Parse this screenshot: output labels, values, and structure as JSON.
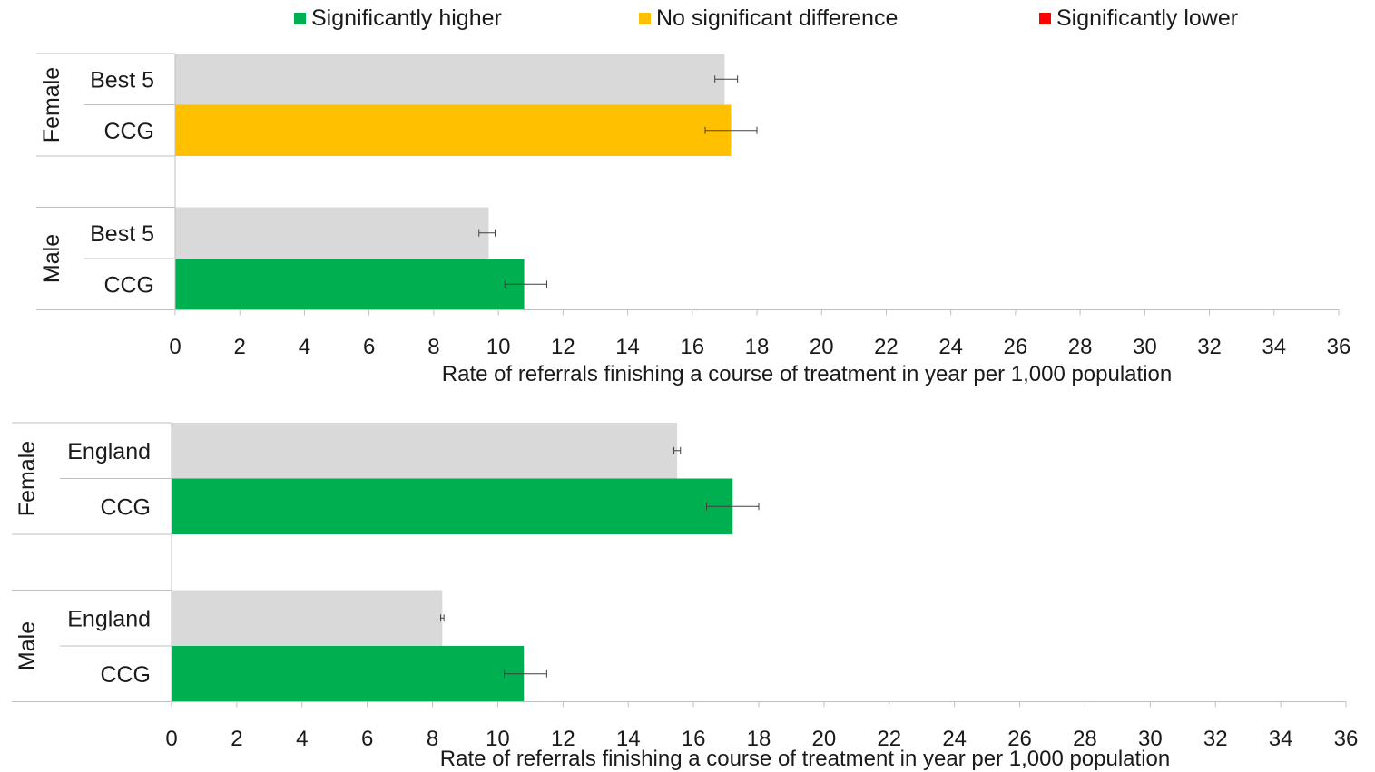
{
  "legend": {
    "items": [
      {
        "label": "Significantly higher",
        "color": "#00b050"
      },
      {
        "label": "No significant difference",
        "color": "#ffc000"
      },
      {
        "label": "Significantly lower",
        "color": "#ff0000"
      }
    ]
  },
  "colors": {
    "comparator": "#d9d9d9",
    "higher": "#00b050",
    "no_difference": "#ffc000",
    "lower": "#ff0000",
    "axis": "#bfbfbf",
    "error_bar": "#404040"
  },
  "chart_data": [
    {
      "type": "bar",
      "orientation": "horizontal",
      "xlabel": "Rate of referrals finishing a course of treatment in year per 1,000 population",
      "xlim": [
        0,
        36
      ],
      "xticks": [
        0,
        2,
        4,
        6,
        8,
        10,
        12,
        14,
        16,
        18,
        20,
        22,
        24,
        26,
        28,
        30,
        32,
        34,
        36
      ],
      "groups": [
        {
          "label": "Female",
          "bars": [
            {
              "label": "Best 5",
              "value": 17.0,
              "ci": [
                16.7,
                17.4
              ],
              "status": "comparator"
            },
            {
              "label": "CCG",
              "value": 17.2,
              "ci": [
                16.4,
                18.0
              ],
              "status": "no_difference"
            }
          ]
        },
        {
          "label": "Male",
          "bars": [
            {
              "label": "Best 5",
              "value": 9.7,
              "ci": [
                9.4,
                9.9
              ],
              "status": "comparator"
            },
            {
              "label": "CCG",
              "value": 10.8,
              "ci": [
                10.2,
                11.5
              ],
              "status": "higher"
            }
          ]
        }
      ]
    },
    {
      "type": "bar",
      "orientation": "horizontal",
      "xlabel": "Rate of referrals finishing a course of treatment in year per 1,000 population",
      "xlim": [
        0,
        36
      ],
      "xticks": [
        0,
        2,
        4,
        6,
        8,
        10,
        12,
        14,
        16,
        18,
        20,
        22,
        24,
        26,
        28,
        30,
        32,
        34,
        36
      ],
      "groups": [
        {
          "label": "Female",
          "bars": [
            {
              "label": "England",
              "value": 15.5,
              "ci": [
                15.4,
                15.6
              ],
              "status": "comparator"
            },
            {
              "label": "CCG",
              "value": 17.2,
              "ci": [
                16.4,
                18.0
              ],
              "status": "higher"
            }
          ]
        },
        {
          "label": "Male",
          "bars": [
            {
              "label": "England",
              "value": 8.3,
              "ci": [
                8.25,
                8.35
              ],
              "status": "comparator"
            },
            {
              "label": "CCG",
              "value": 10.8,
              "ci": [
                10.2,
                11.5
              ],
              "status": "higher"
            }
          ]
        }
      ]
    }
  ]
}
